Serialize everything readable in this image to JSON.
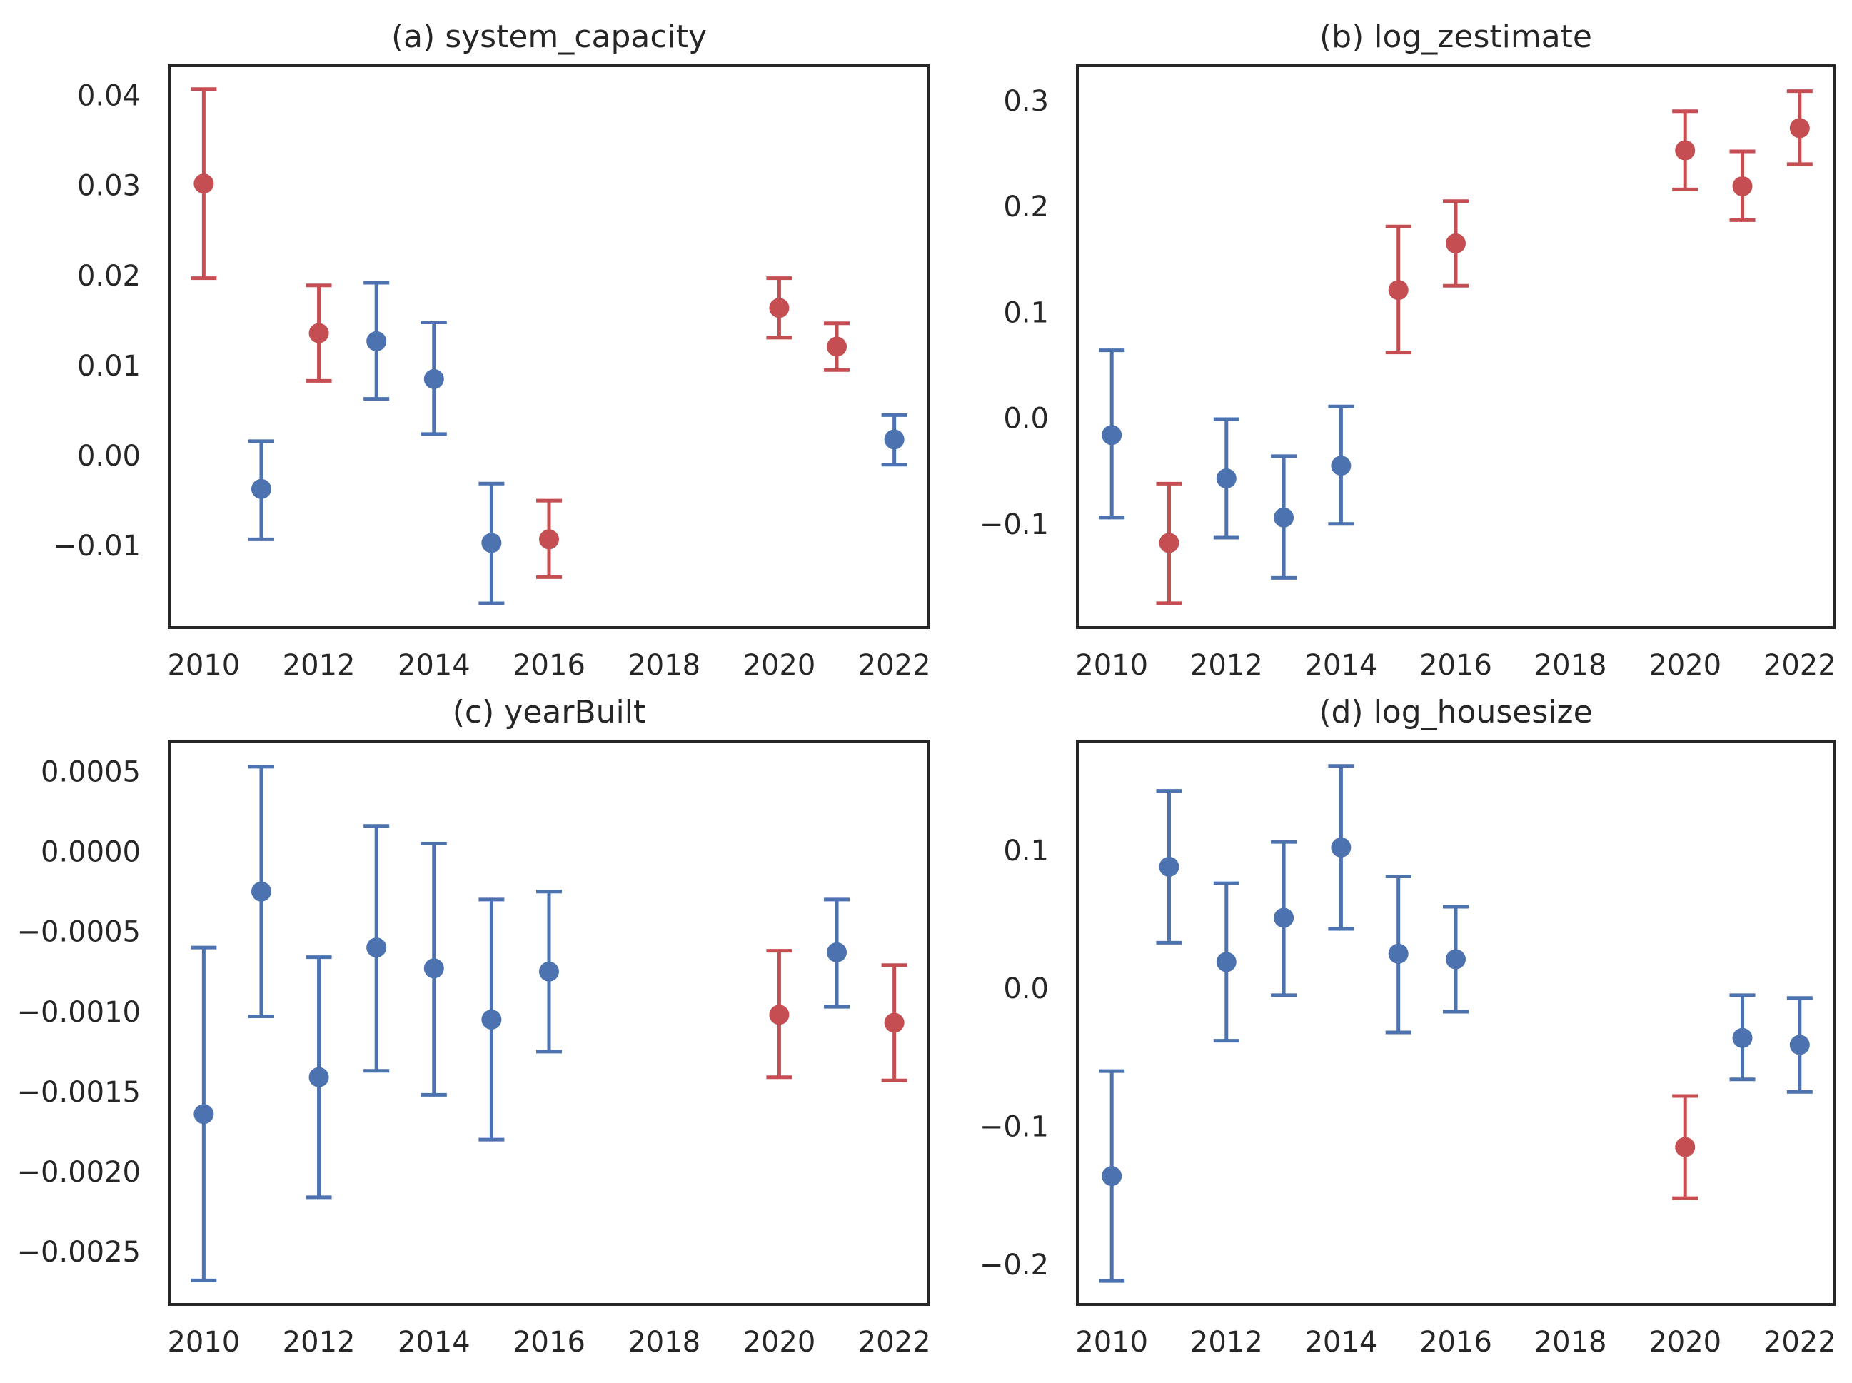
{
  "colors": {
    "significant": "#c44e52",
    "not_significant": "#4c72b0",
    "frame": "#262626"
  },
  "chart_data": [
    {
      "type": "scatter",
      "title": "(a) system_capacity",
      "xlabel": "",
      "ylabel": "",
      "x_ticks": [
        "2010",
        "2012",
        "2014",
        "2016",
        "2018",
        "2020",
        "2022"
      ],
      "y_ticks": [
        "0.04",
        "0.03",
        "0.02",
        "0.01",
        "0.00",
        "−0.01"
      ],
      "y_tick_values": [
        0.04,
        0.03,
        0.02,
        0.01,
        0.0,
        -0.01
      ],
      "xlim": [
        2009.4,
        2022.6
      ],
      "ylim": [
        -0.0191,
        0.0433
      ],
      "grid": false,
      "points": [
        {
          "x": 2010,
          "y": 0.0302,
          "lo": 0.0197,
          "hi": 0.0407,
          "sig": true
        },
        {
          "x": 2011,
          "y": -0.0037,
          "lo": -0.0093,
          "hi": 0.0016,
          "sig": false
        },
        {
          "x": 2012,
          "y": 0.0136,
          "lo": 0.0083,
          "hi": 0.0189,
          "sig": true
        },
        {
          "x": 2013,
          "y": 0.0127,
          "lo": 0.0063,
          "hi": 0.0192,
          "sig": false
        },
        {
          "x": 2014,
          "y": 0.0085,
          "lo": 0.0024,
          "hi": 0.0148,
          "sig": false
        },
        {
          "x": 2015,
          "y": -0.0097,
          "lo": -0.0164,
          "hi": -0.0031,
          "sig": false
        },
        {
          "x": 2016,
          "y": -0.0093,
          "lo": -0.0135,
          "hi": -0.005,
          "sig": true
        },
        {
          "x": 2020,
          "y": 0.0164,
          "lo": 0.0131,
          "hi": 0.0197,
          "sig": true
        },
        {
          "x": 2021,
          "y": 0.0121,
          "lo": 0.0095,
          "hi": 0.0147,
          "sig": true
        },
        {
          "x": 2022,
          "y": 0.0018,
          "lo": -0.001,
          "hi": 0.0045,
          "sig": false
        }
      ]
    },
    {
      "type": "scatter",
      "title": "(b) log_zestimate",
      "xlabel": "",
      "ylabel": "",
      "x_ticks": [
        "2010",
        "2012",
        "2014",
        "2016",
        "2018",
        "2020",
        "2022"
      ],
      "y_ticks": [
        "0.3",
        "0.2",
        "0.1",
        "0.0",
        "−0.1"
      ],
      "y_tick_values": [
        0.3,
        0.2,
        0.1,
        0.0,
        -0.1
      ],
      "xlim": [
        2009.4,
        2022.6
      ],
      "ylim": [
        -0.198,
        0.333
      ],
      "grid": false,
      "points": [
        {
          "x": 2010,
          "y": -0.016,
          "lo": -0.094,
          "hi": 0.064,
          "sig": false
        },
        {
          "x": 2011,
          "y": -0.118,
          "lo": -0.175,
          "hi": -0.062,
          "sig": true
        },
        {
          "x": 2012,
          "y": -0.057,
          "lo": -0.113,
          "hi": -0.001,
          "sig": false
        },
        {
          "x": 2013,
          "y": -0.094,
          "lo": -0.151,
          "hi": -0.036,
          "sig": false
        },
        {
          "x": 2014,
          "y": -0.045,
          "lo": -0.1,
          "hi": 0.011,
          "sig": false
        },
        {
          "x": 2015,
          "y": 0.121,
          "lo": 0.062,
          "hi": 0.181,
          "sig": true
        },
        {
          "x": 2016,
          "y": 0.165,
          "lo": 0.125,
          "hi": 0.205,
          "sig": true
        },
        {
          "x": 2020,
          "y": 0.253,
          "lo": 0.216,
          "hi": 0.29,
          "sig": true
        },
        {
          "x": 2021,
          "y": 0.219,
          "lo": 0.187,
          "hi": 0.252,
          "sig": true
        },
        {
          "x": 2022,
          "y": 0.274,
          "lo": 0.24,
          "hi": 0.309,
          "sig": true
        }
      ]
    },
    {
      "type": "scatter",
      "title": "(c) yearBuilt",
      "xlabel": "",
      "ylabel": "",
      "x_ticks": [
        "2010",
        "2012",
        "2014",
        "2016",
        "2018",
        "2020",
        "2022"
      ],
      "y_ticks": [
        "0.0005",
        "0.0000",
        "−0.0005",
        "−0.0010",
        "−0.0015",
        "−0.0020",
        "−0.0025"
      ],
      "y_tick_values": [
        0.0005,
        0.0,
        -0.0005,
        -0.001,
        -0.0015,
        -0.002,
        -0.0025
      ],
      "xlim": [
        2009.4,
        2022.6
      ],
      "ylim": [
        -0.00283,
        0.00069
      ],
      "grid": false,
      "points": [
        {
          "x": 2010,
          "y": -0.00164,
          "lo": -0.00268,
          "hi": -0.0006,
          "sig": false
        },
        {
          "x": 2011,
          "y": -0.00025,
          "lo": -0.00103,
          "hi": 0.00053,
          "sig": false
        },
        {
          "x": 2012,
          "y": -0.00141,
          "lo": -0.00216,
          "hi": -0.00066,
          "sig": false
        },
        {
          "x": 2013,
          "y": -0.0006,
          "lo": -0.00137,
          "hi": 0.00016,
          "sig": false
        },
        {
          "x": 2014,
          "y": -0.00073,
          "lo": -0.00152,
          "hi": 5e-05,
          "sig": false
        },
        {
          "x": 2015,
          "y": -0.00105,
          "lo": -0.0018,
          "hi": -0.0003,
          "sig": false
        },
        {
          "x": 2016,
          "y": -0.00075,
          "lo": -0.00125,
          "hi": -0.00025,
          "sig": false
        },
        {
          "x": 2020,
          "y": -0.00102,
          "lo": -0.00141,
          "hi": -0.00062,
          "sig": true
        },
        {
          "x": 2021,
          "y": -0.00063,
          "lo": -0.00097,
          "hi": -0.0003,
          "sig": false
        },
        {
          "x": 2022,
          "y": -0.00107,
          "lo": -0.00143,
          "hi": -0.00071,
          "sig": true
        }
      ]
    },
    {
      "type": "scatter",
      "title": "(d) log_housesize",
      "xlabel": "",
      "ylabel": "",
      "x_ticks": [
        "2010",
        "2012",
        "2014",
        "2016",
        "2018",
        "2020",
        "2022"
      ],
      "y_ticks": [
        "0.1",
        "0.0",
        "−0.1",
        "−0.2"
      ],
      "y_tick_values": [
        0.1,
        0.0,
        -0.1,
        -0.2
      ],
      "xlim": [
        2009.4,
        2022.6
      ],
      "ylim": [
        -0.229,
        0.179
      ],
      "grid": false,
      "points": [
        {
          "x": 2010,
          "y": -0.136,
          "lo": -0.212,
          "hi": -0.06,
          "sig": false
        },
        {
          "x": 2011,
          "y": 0.088,
          "lo": 0.033,
          "hi": 0.143,
          "sig": false
        },
        {
          "x": 2012,
          "y": 0.019,
          "lo": -0.038,
          "hi": 0.076,
          "sig": false
        },
        {
          "x": 2013,
          "y": 0.051,
          "lo": -0.005,
          "hi": 0.106,
          "sig": false
        },
        {
          "x": 2014,
          "y": 0.102,
          "lo": 0.043,
          "hi": 0.161,
          "sig": false
        },
        {
          "x": 2015,
          "y": 0.025,
          "lo": -0.032,
          "hi": 0.081,
          "sig": false
        },
        {
          "x": 2016,
          "y": 0.021,
          "lo": -0.017,
          "hi": 0.059,
          "sig": false
        },
        {
          "x": 2020,
          "y": -0.115,
          "lo": -0.152,
          "hi": -0.078,
          "sig": true
        },
        {
          "x": 2021,
          "y": -0.036,
          "lo": -0.066,
          "hi": -0.005,
          "sig": false
        },
        {
          "x": 2022,
          "y": -0.041,
          "lo": -0.075,
          "hi": -0.007,
          "sig": false
        }
      ]
    }
  ]
}
